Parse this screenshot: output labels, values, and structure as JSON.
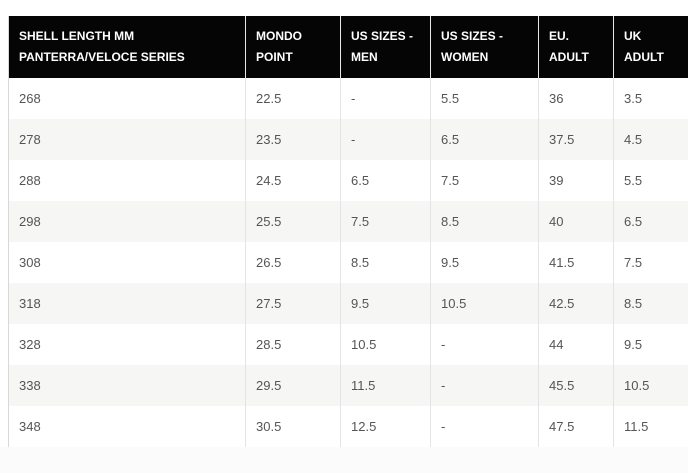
{
  "table": {
    "header": [
      [
        "SHELL LENGTH MM",
        "PANTERRA/VELOCE SERIES"
      ],
      [
        "MONDO",
        "POINT"
      ],
      [
        "US SIZES -",
        "MEN"
      ],
      [
        "US SIZES -",
        "WOMEN"
      ],
      [
        "EU.",
        "ADULT"
      ],
      [
        "UK",
        "ADULT"
      ]
    ],
    "rows": [
      [
        "268",
        "22.5",
        "-",
        "5.5",
        "36",
        "3.5"
      ],
      [
        "278",
        "23.5",
        "-",
        "6.5",
        "37.5",
        "4.5"
      ],
      [
        "288",
        "24.5",
        "6.5",
        "7.5",
        "39",
        "5.5"
      ],
      [
        "298",
        "25.5",
        "7.5",
        "8.5",
        "40",
        "6.5"
      ],
      [
        "308",
        "26.5",
        "8.5",
        "9.5",
        "41.5",
        "7.5"
      ],
      [
        "318",
        "27.5",
        "9.5",
        "10.5",
        "42.5",
        "8.5"
      ],
      [
        "328",
        "28.5",
        "10.5",
        "-",
        "44",
        "9.5"
      ],
      [
        "338",
        "29.5",
        "11.5",
        "-",
        "45.5",
        "10.5"
      ],
      [
        "348",
        "30.5",
        "12.5",
        "-",
        "47.5",
        "11.5"
      ]
    ]
  }
}
